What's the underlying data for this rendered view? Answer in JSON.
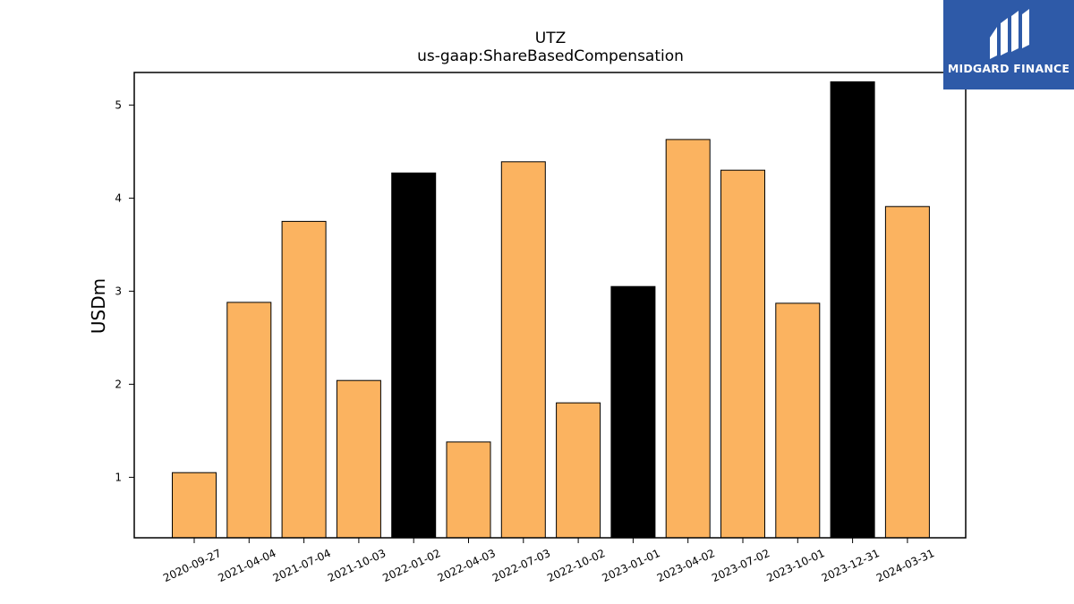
{
  "brand": {
    "name": "MIDGARD FINANCE",
    "background": "#2e5aa8"
  },
  "chart_data": {
    "type": "bar",
    "title": "UTZ",
    "subtitle": "us-gaap:ShareBasedCompensation",
    "xlabel": "",
    "ylabel": "USDm",
    "ylim": [
      0.35,
      5.35
    ],
    "yticks": [
      1,
      2,
      3,
      4,
      5
    ],
    "grid": false,
    "categories": [
      "2020-09-27",
      "2021-04-04",
      "2021-07-04",
      "2021-10-03",
      "2022-01-02",
      "2022-04-03",
      "2022-07-03",
      "2022-10-02",
      "2023-01-01",
      "2023-04-02",
      "2023-07-02",
      "2023-10-01",
      "2023-12-31",
      "2024-03-31"
    ],
    "values": [
      1.05,
      2.88,
      3.75,
      2.04,
      4.27,
      1.38,
      4.39,
      1.8,
      3.05,
      4.63,
      4.3,
      2.87,
      5.25,
      3.91
    ],
    "bar_colors": [
      "#fbb360",
      "#fbb360",
      "#fbb360",
      "#fbb360",
      "#000000",
      "#fbb360",
      "#fbb360",
      "#fbb360",
      "#000000",
      "#fbb360",
      "#fbb360",
      "#fbb360",
      "#000000",
      "#fbb360"
    ]
  }
}
